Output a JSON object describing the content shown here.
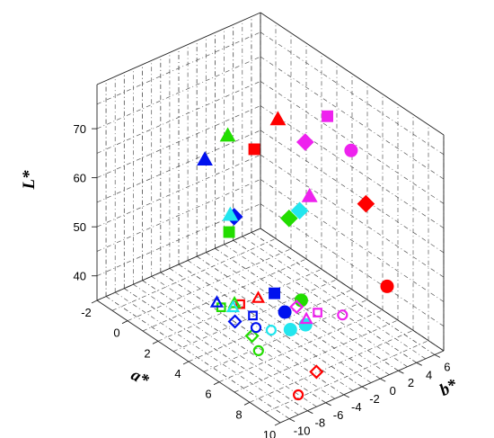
{
  "chart_data": {
    "type": "scatter3d",
    "axes": {
      "x": {
        "label": "a*",
        "range": [
          -2,
          10
        ],
        "ticks": [
          "-2",
          "0",
          "2",
          "4",
          "6",
          "8",
          "10"
        ]
      },
      "y": {
        "label": "b*",
        "range": [
          -11,
          7
        ],
        "ticks": [
          "-10",
          "-8",
          "-6",
          "-4",
          "-2",
          "0",
          "2",
          "4",
          "6"
        ]
      },
      "z": {
        "label": "L*",
        "range": [
          35,
          79
        ],
        "ticks": [
          "40",
          "50",
          "60",
          "70"
        ]
      }
    },
    "grid": true,
    "legend": "none",
    "colors": {
      "red": "#ff0000",
      "green": "#22dd00",
      "blue": "#0011ee",
      "cyan": "#22e6ee",
      "magenta": "#ee22ee"
    },
    "points": [
      {
        "a": 3.9,
        "b": -1.0,
        "L": 76.0,
        "shape": "triangle",
        "fill": "filled",
        "color": "red"
      },
      {
        "a": 3.6,
        "b": -3.1,
        "L": 71.0,
        "shape": "square",
        "fill": "filled",
        "color": "red"
      },
      {
        "a": 7.7,
        "b": 2.3,
        "L": 64.0,
        "shape": "diamond",
        "fill": "filled",
        "color": "red"
      },
      {
        "a": 8.2,
        "b": 3.8,
        "L": 47.0,
        "shape": "circle",
        "fill": "filled",
        "color": "red"
      },
      {
        "a": 2.4,
        "b": -4.0,
        "L": 72.0,
        "shape": "triangle",
        "fill": "filled",
        "color": "green"
      },
      {
        "a": 5.4,
        "b": -2.3,
        "L": 60.0,
        "shape": "diamond",
        "fill": "filled",
        "color": "green"
      },
      {
        "a": 3.2,
        "b": -5.2,
        "L": 55.0,
        "shape": "square",
        "fill": "filled",
        "color": "green"
      },
      {
        "a": 6.5,
        "b": -2.8,
        "L": 46.0,
        "shape": "circle",
        "fill": "filled",
        "color": "green"
      },
      {
        "a": 0.9,
        "b": -4.0,
        "L": 64.0,
        "shape": "triangle",
        "fill": "filled",
        "color": "blue"
      },
      {
        "a": 3.0,
        "b": -4.3,
        "L": 57.0,
        "shape": "diamond",
        "fill": "filled",
        "color": "blue"
      },
      {
        "a": 5.1,
        "b": -3.4,
        "L": 45.0,
        "shape": "square",
        "fill": "filled",
        "color": "blue"
      },
      {
        "a": 5.9,
        "b": -3.6,
        "L": 43.0,
        "shape": "circle",
        "fill": "filled",
        "color": "blue"
      },
      {
        "a": 5.8,
        "b": -1.8,
        "L": 62.0,
        "shape": "diamond",
        "fill": "filled",
        "color": "cyan"
      },
      {
        "a": 2.8,
        "b": -4.4,
        "L": 57.0,
        "shape": "triangle",
        "fill": "filled",
        "color": "cyan"
      },
      {
        "a": 6.9,
        "b": -3.0,
        "L": 42.0,
        "shape": "circle",
        "fill": "filled",
        "color": "cyan"
      },
      {
        "a": 6.5,
        "b": -4.0,
        "L": 41.0,
        "shape": "circle",
        "fill": "filled",
        "color": "cyan"
      },
      {
        "a": 5.0,
        "b": 2.6,
        "L": 76.0,
        "shape": "square",
        "fill": "filled",
        "color": "magenta"
      },
      {
        "a": 4.5,
        "b": 1.0,
        "L": 71.0,
        "shape": "diamond",
        "fill": "filled",
        "color": "magenta"
      },
      {
        "a": 5.9,
        "b": 3.7,
        "L": 70.0,
        "shape": "circle",
        "fill": "filled",
        "color": "magenta"
      },
      {
        "a": 5.5,
        "b": -0.2,
        "L": 63.0,
        "shape": "triangle",
        "fill": "filled",
        "color": "magenta"
      },
      {
        "a": 3.8,
        "b": -3.0,
        "L": 41.0,
        "shape": "triangle",
        "fill": "open",
        "color": "red"
      },
      {
        "a": 3.4,
        "b": -4.3,
        "L": 40.0,
        "shape": "square",
        "fill": "open",
        "color": "red"
      },
      {
        "a": 8.8,
        "b": -5.0,
        "L": 38.0,
        "shape": "diamond",
        "fill": "open",
        "color": "red"
      },
      {
        "a": 9.4,
        "b": -8.0,
        "L": 37.0,
        "shape": "circle",
        "fill": "open",
        "color": "red"
      },
      {
        "a": 3.2,
        "b": -4.6,
        "L": 40.0,
        "shape": "triangle",
        "fill": "open",
        "color": "green"
      },
      {
        "a": 2.8,
        "b": -5.4,
        "L": 39.0,
        "shape": "square",
        "fill": "open",
        "color": "green"
      },
      {
        "a": 5.0,
        "b": -5.7,
        "L": 38.0,
        "shape": "diamond",
        "fill": "open",
        "color": "green"
      },
      {
        "a": 5.9,
        "b": -6.5,
        "L": 37.5,
        "shape": "circle",
        "fill": "open",
        "color": "green"
      },
      {
        "a": 2.7,
        "b": -5.7,
        "L": 40.0,
        "shape": "triangle",
        "fill": "open",
        "color": "blue"
      },
      {
        "a": 4.4,
        "b": -4.6,
        "L": 40.0,
        "shape": "square",
        "fill": "open",
        "color": "blue"
      },
      {
        "a": 4.0,
        "b": -5.9,
        "L": 39.0,
        "shape": "diamond",
        "fill": "open",
        "color": "blue"
      },
      {
        "a": 4.9,
        "b": -5.1,
        "L": 39.0,
        "shape": "circle",
        "fill": "open",
        "color": "blue"
      },
      {
        "a": 3.4,
        "b": -5.1,
        "L": 40.0,
        "shape": "triangle",
        "fill": "open",
        "color": "cyan"
      },
      {
        "a": 5.6,
        "b": -4.6,
        "L": 39.5,
        "shape": "circle",
        "fill": "open",
        "color": "cyan"
      },
      {
        "a": 6.0,
        "b": -1.4,
        "L": 40.0,
        "shape": "triangle",
        "fill": "open",
        "color": "magenta"
      },
      {
        "a": 5.6,
        "b": -1.8,
        "L": 42.0,
        "shape": "diamond",
        "fill": "open",
        "color": "magenta"
      },
      {
        "a": 6.2,
        "b": -0.5,
        "L": 41.0,
        "shape": "square",
        "fill": "open",
        "color": "magenta"
      },
      {
        "a": 6.7,
        "b": 1.4,
        "L": 40.0,
        "shape": "circle",
        "fill": "open",
        "color": "magenta"
      }
    ]
  }
}
